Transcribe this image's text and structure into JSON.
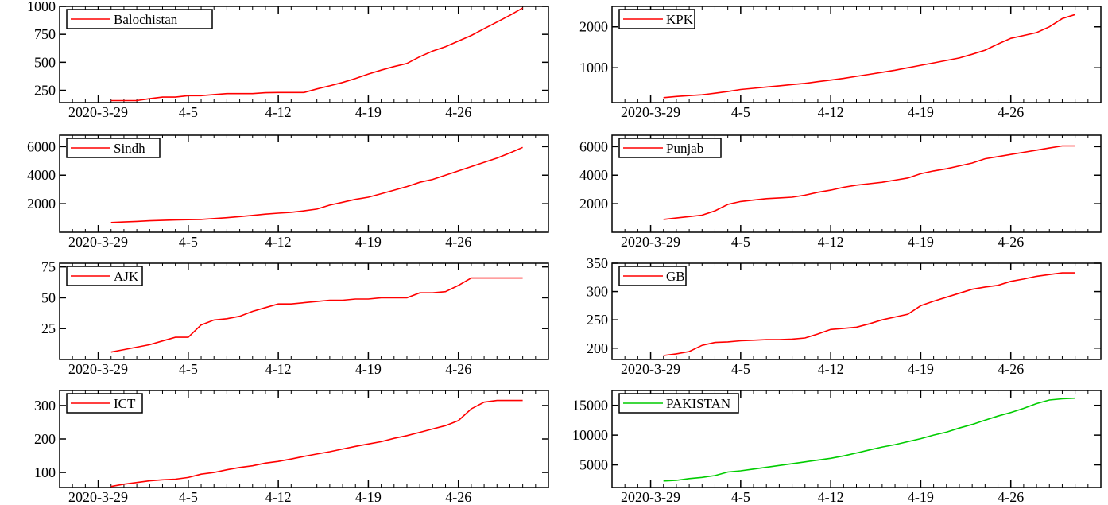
{
  "x_tick_labels": [
    "2020-3-29",
    "4-5",
    "4-12",
    "4-19",
    "4-26"
  ],
  "chart_data": [
    {
      "type": "line",
      "legend": "Balochistan",
      "color": "#ff0000",
      "x": [
        "2020-03-30",
        "2020-03-31",
        "2020-04-01",
        "2020-04-02",
        "2020-04-03",
        "2020-04-04",
        "2020-04-05",
        "2020-04-06",
        "2020-04-07",
        "2020-04-08",
        "2020-04-09",
        "2020-04-10",
        "2020-04-11",
        "2020-04-12",
        "2020-04-13",
        "2020-04-14",
        "2020-04-15",
        "2020-04-16",
        "2020-04-17",
        "2020-04-18",
        "2020-04-19",
        "2020-04-20",
        "2020-04-21",
        "2020-04-22",
        "2020-04-23",
        "2020-04-24",
        "2020-04-25",
        "2020-04-26",
        "2020-04-27",
        "2020-04-28",
        "2020-04-29",
        "2020-04-30",
        "2020-05-01"
      ],
      "values": [
        158,
        158,
        158,
        175,
        189,
        189,
        202,
        202,
        212,
        220,
        220,
        220,
        228,
        230,
        230,
        230,
        262,
        290,
        320,
        355,
        395,
        430,
        462,
        490,
        550,
        600,
        640,
        690,
        740,
        800,
        860,
        920,
        985
      ],
      "yticks": [
        250,
        500,
        750,
        1000
      ],
      "ylim": [
        140,
        1000
      ]
    },
    {
      "type": "line",
      "legend": "KPK",
      "color": "#ff0000",
      "x": [
        "2020-03-30",
        "2020-03-31",
        "2020-04-01",
        "2020-04-02",
        "2020-04-03",
        "2020-04-04",
        "2020-04-05",
        "2020-04-06",
        "2020-04-07",
        "2020-04-08",
        "2020-04-09",
        "2020-04-10",
        "2020-04-11",
        "2020-04-12",
        "2020-04-13",
        "2020-04-14",
        "2020-04-15",
        "2020-04-16",
        "2020-04-17",
        "2020-04-18",
        "2020-04-19",
        "2020-04-20",
        "2020-04-21",
        "2020-04-22",
        "2020-04-23",
        "2020-04-24",
        "2020-04-25",
        "2020-04-26",
        "2020-04-27",
        "2020-04-28",
        "2020-04-29",
        "2020-04-30",
        "2020-05-01"
      ],
      "values": [
        270,
        300,
        320,
        340,
        380,
        420,
        470,
        500,
        530,
        560,
        590,
        620,
        660,
        700,
        740,
        790,
        840,
        890,
        940,
        1000,
        1060,
        1120,
        1180,
        1240,
        1330,
        1430,
        1580,
        1720,
        1790,
        1860,
        2000,
        2200,
        2300
      ],
      "yticks": [
        1000,
        2000
      ],
      "ylim": [
        150,
        2500
      ]
    },
    {
      "type": "line",
      "legend": "Sindh",
      "color": "#ff0000",
      "x": [
        "2020-03-30",
        "2020-03-31",
        "2020-04-01",
        "2020-04-02",
        "2020-04-03",
        "2020-04-04",
        "2020-04-05",
        "2020-04-06",
        "2020-04-07",
        "2020-04-08",
        "2020-04-09",
        "2020-04-10",
        "2020-04-11",
        "2020-04-12",
        "2020-04-13",
        "2020-04-14",
        "2020-04-15",
        "2020-04-16",
        "2020-04-17",
        "2020-04-18",
        "2020-04-19",
        "2020-04-20",
        "2020-04-21",
        "2020-04-22",
        "2020-04-23",
        "2020-04-24",
        "2020-04-25",
        "2020-04-26",
        "2020-04-27",
        "2020-04-28",
        "2020-04-29",
        "2020-04-30",
        "2020-05-01"
      ],
      "values": [
        680,
        720,
        760,
        800,
        830,
        860,
        880,
        900,
        960,
        1020,
        1100,
        1180,
        1270,
        1340,
        1400,
        1500,
        1620,
        1900,
        2100,
        2300,
        2450,
        2700,
        2950,
        3200,
        3500,
        3700,
        4000,
        4300,
        4600,
        4900,
        5200,
        5550,
        5950
      ],
      "yticks": [
        2000,
        4000,
        6000
      ],
      "ylim": [
        0,
        6800
      ]
    },
    {
      "type": "line",
      "legend": "Punjab",
      "color": "#ff0000",
      "x": [
        "2020-03-30",
        "2020-03-31",
        "2020-04-01",
        "2020-04-02",
        "2020-04-03",
        "2020-04-04",
        "2020-04-05",
        "2020-04-06",
        "2020-04-07",
        "2020-04-08",
        "2020-04-09",
        "2020-04-10",
        "2020-04-11",
        "2020-04-12",
        "2020-04-13",
        "2020-04-14",
        "2020-04-15",
        "2020-04-16",
        "2020-04-17",
        "2020-04-18",
        "2020-04-19",
        "2020-04-20",
        "2020-04-21",
        "2020-04-22",
        "2020-04-23",
        "2020-04-24",
        "2020-04-25",
        "2020-04-26",
        "2020-04-27",
        "2020-04-28",
        "2020-04-29",
        "2020-04-30",
        "2020-05-01"
      ],
      "values": [
        900,
        1000,
        1100,
        1200,
        1500,
        1950,
        2150,
        2250,
        2350,
        2400,
        2450,
        2600,
        2800,
        2950,
        3150,
        3300,
        3400,
        3500,
        3650,
        3800,
        4100,
        4300,
        4450,
        4650,
        4850,
        5150,
        5300,
        5450,
        5600,
        5750,
        5900,
        6050,
        6050
      ],
      "yticks": [
        2000,
        4000,
        6000
      ],
      "ylim": [
        0,
        6800
      ]
    },
    {
      "type": "line",
      "legend": "AJK",
      "color": "#ff0000",
      "x": [
        "2020-03-30",
        "2020-03-31",
        "2020-04-01",
        "2020-04-02",
        "2020-04-03",
        "2020-04-04",
        "2020-04-05",
        "2020-04-06",
        "2020-04-07",
        "2020-04-08",
        "2020-04-09",
        "2020-04-10",
        "2020-04-11",
        "2020-04-12",
        "2020-04-13",
        "2020-04-14",
        "2020-04-15",
        "2020-04-16",
        "2020-04-17",
        "2020-04-18",
        "2020-04-19",
        "2020-04-20",
        "2020-04-21",
        "2020-04-22",
        "2020-04-23",
        "2020-04-24",
        "2020-04-25",
        "2020-04-26",
        "2020-04-27",
        "2020-04-28",
        "2020-04-29",
        "2020-04-30",
        "2020-05-01"
      ],
      "values": [
        6,
        8,
        10,
        12,
        15,
        18,
        18,
        28,
        32,
        33,
        35,
        39,
        42,
        45,
        45,
        46,
        47,
        48,
        48,
        49,
        49,
        50,
        50,
        50,
        54,
        54,
        55,
        60,
        66,
        66,
        66,
        66,
        66
      ],
      "yticks": [
        25,
        50,
        75
      ],
      "ylim": [
        0,
        78
      ]
    },
    {
      "type": "line",
      "legend": "GB",
      "color": "#ff0000",
      "x": [
        "2020-03-30",
        "2020-03-31",
        "2020-04-01",
        "2020-04-02",
        "2020-04-03",
        "2020-04-04",
        "2020-04-05",
        "2020-04-06",
        "2020-04-07",
        "2020-04-08",
        "2020-04-09",
        "2020-04-10",
        "2020-04-11",
        "2020-04-12",
        "2020-04-13",
        "2020-04-14",
        "2020-04-15",
        "2020-04-16",
        "2020-04-17",
        "2020-04-18",
        "2020-04-19",
        "2020-04-20",
        "2020-04-21",
        "2020-04-22",
        "2020-04-23",
        "2020-04-24",
        "2020-04-25",
        "2020-04-26",
        "2020-04-27",
        "2020-04-28",
        "2020-04-29",
        "2020-04-30",
        "2020-05-01"
      ],
      "values": [
        187,
        190,
        194,
        205,
        210,
        211,
        213,
        214,
        215,
        215,
        216,
        218,
        225,
        233,
        235,
        237,
        243,
        250,
        255,
        260,
        275,
        283,
        290,
        297,
        304,
        308,
        311,
        318,
        322,
        327,
        330,
        333,
        333
      ],
      "yticks": [
        200,
        250,
        300,
        350
      ],
      "ylim": [
        180,
        350
      ]
    },
    {
      "type": "line",
      "legend": "ICT",
      "color": "#ff0000",
      "x": [
        "2020-03-30",
        "2020-03-31",
        "2020-04-01",
        "2020-04-02",
        "2020-04-03",
        "2020-04-04",
        "2020-04-05",
        "2020-04-06",
        "2020-04-07",
        "2020-04-08",
        "2020-04-09",
        "2020-04-10",
        "2020-04-11",
        "2020-04-12",
        "2020-04-13",
        "2020-04-14",
        "2020-04-15",
        "2020-04-16",
        "2020-04-17",
        "2020-04-18",
        "2020-04-19",
        "2020-04-20",
        "2020-04-21",
        "2020-04-22",
        "2020-04-23",
        "2020-04-24",
        "2020-04-25",
        "2020-04-26",
        "2020-04-27",
        "2020-04-28",
        "2020-04-29",
        "2020-04-30",
        "2020-05-01"
      ],
      "values": [
        58,
        65,
        70,
        75,
        78,
        80,
        85,
        95,
        100,
        108,
        115,
        120,
        128,
        133,
        140,
        148,
        155,
        162,
        170,
        178,
        185,
        192,
        202,
        210,
        220,
        230,
        240,
        255,
        290,
        310,
        315,
        315,
        315
      ],
      "yticks": [
        100,
        200,
        300
      ],
      "ylim": [
        55,
        345
      ]
    },
    {
      "type": "line",
      "legend": "PAKISTAN",
      "color": "#00cc00",
      "x": [
        "2020-03-30",
        "2020-03-31",
        "2020-04-01",
        "2020-04-02",
        "2020-04-03",
        "2020-04-04",
        "2020-04-05",
        "2020-04-06",
        "2020-04-07",
        "2020-04-08",
        "2020-04-09",
        "2020-04-10",
        "2020-04-11",
        "2020-04-12",
        "2020-04-13",
        "2020-04-14",
        "2020-04-15",
        "2020-04-16",
        "2020-04-17",
        "2020-04-18",
        "2020-04-19",
        "2020-04-20",
        "2020-04-21",
        "2020-04-22",
        "2020-04-23",
        "2020-04-24",
        "2020-04-25",
        "2020-04-26",
        "2020-04-27",
        "2020-04-28",
        "2020-04-29",
        "2020-04-30",
        "2020-05-01"
      ],
      "values": [
        2300,
        2400,
        2700,
        2900,
        3200,
        3800,
        4000,
        4300,
        4600,
        4900,
        5200,
        5500,
        5800,
        6100,
        6500,
        7000,
        7500,
        8000,
        8400,
        8900,
        9400,
        10000,
        10500,
        11200,
        11800,
        12500,
        13200,
        13800,
        14500,
        15300,
        15900,
        16100,
        16200
      ],
      "yticks": [
        5000,
        10000,
        15000
      ],
      "ylim": [
        1200,
        17500
      ]
    }
  ]
}
